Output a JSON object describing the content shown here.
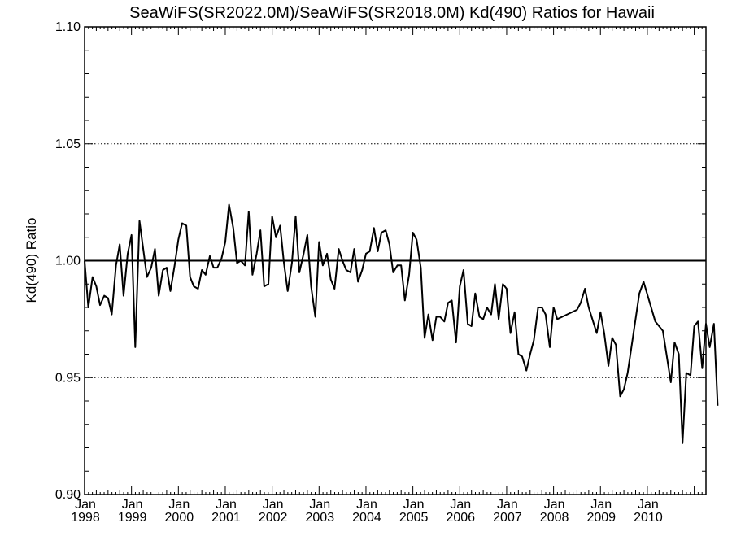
{
  "chart_data": {
    "type": "line",
    "title": "SeaWiFS(SR2022.0M)/SeaWiFS(SR2018.0M)  Kd(490) Ratios for Hawaii",
    "xlabel": "",
    "ylabel": "Kd(490) Ratio",
    "xlim": [
      1998.0,
      2011.25
    ],
    "ylim": [
      0.9,
      1.1
    ],
    "y_ticks": [
      "0.90",
      "0.95",
      "1.00",
      "1.05",
      "1.10"
    ],
    "x_ticks": [
      {
        "month": "Jan",
        "year": "1998"
      },
      {
        "month": "Jan",
        "year": "1999"
      },
      {
        "month": "Jan",
        "year": "2000"
      },
      {
        "month": "Jan",
        "year": "2001"
      },
      {
        "month": "Jan",
        "year": "2002"
      },
      {
        "month": "Jan",
        "year": "2003"
      },
      {
        "month": "Jan",
        "year": "2004"
      },
      {
        "month": "Jan",
        "year": "2005"
      },
      {
        "month": "Jan",
        "year": "2006"
      },
      {
        "month": "Jan",
        "year": "2007"
      },
      {
        "month": "Jan",
        "year": "2008"
      },
      {
        "month": "Jan",
        "year": "2009"
      },
      {
        "month": "Jan",
        "year": "2010"
      }
    ],
    "reference_lines": [
      {
        "y": 1.0,
        "style": "solid"
      },
      {
        "y": 1.05,
        "style": "dotted"
      },
      {
        "y": 0.95,
        "style": "dotted"
      }
    ],
    "grid": false,
    "series": [
      {
        "color": "#000000",
        "points": [
          [
            1998.0,
            1.0
          ],
          [
            1998.08,
            0.98
          ],
          [
            1998.17,
            0.993
          ],
          [
            1998.25,
            0.989
          ],
          [
            1998.33,
            0.981
          ],
          [
            1998.42,
            0.985
          ],
          [
            1998.5,
            0.984
          ],
          [
            1998.58,
            0.977
          ],
          [
            1998.67,
            0.998
          ],
          [
            1998.75,
            1.007
          ],
          [
            1998.83,
            0.985
          ],
          [
            1998.92,
            1.003
          ],
          [
            1999.0,
            1.011
          ],
          [
            1999.08,
            0.963
          ],
          [
            1999.17,
            1.017
          ],
          [
            1999.25,
            1.005
          ],
          [
            1999.33,
            0.993
          ],
          [
            1999.42,
            0.997
          ],
          [
            1999.5,
            1.005
          ],
          [
            1999.58,
            0.985
          ],
          [
            1999.67,
            0.996
          ],
          [
            1999.75,
            0.997
          ],
          [
            1999.83,
            0.987
          ],
          [
            1999.92,
            0.998
          ],
          [
            2000.0,
            1.009
          ],
          [
            2000.08,
            1.016
          ],
          [
            2000.17,
            1.015
          ],
          [
            2000.25,
            0.993
          ],
          [
            2000.33,
            0.989
          ],
          [
            2000.42,
            0.988
          ],
          [
            2000.5,
            0.996
          ],
          [
            2000.58,
            0.994
          ],
          [
            2000.67,
            1.002
          ],
          [
            2000.75,
            0.997
          ],
          [
            2000.83,
            0.997
          ],
          [
            2000.92,
            1.001
          ],
          [
            2001.0,
            1.008
          ],
          [
            2001.08,
            1.024
          ],
          [
            2001.17,
            1.014
          ],
          [
            2001.25,
            0.999
          ],
          [
            2001.33,
            1.0
          ],
          [
            2001.42,
            0.998
          ],
          [
            2001.5,
            1.021
          ],
          [
            2001.58,
            0.994
          ],
          [
            2001.67,
            1.003
          ],
          [
            2001.75,
            1.013
          ],
          [
            2001.83,
            0.989
          ],
          [
            2001.92,
            0.99
          ],
          [
            2002.0,
            1.019
          ],
          [
            2002.08,
            1.01
          ],
          [
            2002.17,
            1.015
          ],
          [
            2002.25,
            0.999
          ],
          [
            2002.33,
            0.987
          ],
          [
            2002.42,
            0.999
          ],
          [
            2002.5,
            1.019
          ],
          [
            2002.58,
            0.995
          ],
          [
            2002.67,
            1.003
          ],
          [
            2002.75,
            1.011
          ],
          [
            2002.83,
            0.989
          ],
          [
            2002.92,
            0.976
          ],
          [
            2003.0,
            1.008
          ],
          [
            2003.08,
            0.998
          ],
          [
            2003.17,
            1.003
          ],
          [
            2003.25,
            0.992
          ],
          [
            2003.33,
            0.988
          ],
          [
            2003.42,
            1.005
          ],
          [
            2003.5,
            1.0
          ],
          [
            2003.58,
            0.996
          ],
          [
            2003.67,
            0.995
          ],
          [
            2003.75,
            1.005
          ],
          [
            2003.83,
            0.991
          ],
          [
            2003.92,
            0.996
          ],
          [
            2004.0,
            1.003
          ],
          [
            2004.08,
            1.004
          ],
          [
            2004.17,
            1.014
          ],
          [
            2004.25,
            1.004
          ],
          [
            2004.33,
            1.012
          ],
          [
            2004.42,
            1.013
          ],
          [
            2004.5,
            1.007
          ],
          [
            2004.58,
            0.995
          ],
          [
            2004.67,
            0.998
          ],
          [
            2004.75,
            0.998
          ],
          [
            2004.83,
            0.983
          ],
          [
            2004.92,
            0.994
          ],
          [
            2005.0,
            1.012
          ],
          [
            2005.08,
            1.009
          ],
          [
            2005.17,
            0.997
          ],
          [
            2005.25,
            0.967
          ],
          [
            2005.33,
            0.977
          ],
          [
            2005.42,
            0.966
          ],
          [
            2005.5,
            0.976
          ],
          [
            2005.58,
            0.976
          ],
          [
            2005.67,
            0.974
          ],
          [
            2005.75,
            0.982
          ],
          [
            2005.83,
            0.983
          ],
          [
            2005.92,
            0.965
          ],
          [
            2006.0,
            0.989
          ],
          [
            2006.08,
            0.996
          ],
          [
            2006.17,
            0.973
          ],
          [
            2006.25,
            0.972
          ],
          [
            2006.33,
            0.986
          ],
          [
            2006.42,
            0.976
          ],
          [
            2006.5,
            0.975
          ],
          [
            2006.58,
            0.98
          ],
          [
            2006.67,
            0.977
          ],
          [
            2006.75,
            0.99
          ],
          [
            2006.83,
            0.975
          ],
          [
            2006.92,
            0.99
          ],
          [
            2007.0,
            0.988
          ],
          [
            2007.08,
            0.969
          ],
          [
            2007.17,
            0.978
          ],
          [
            2007.25,
            0.96
          ],
          [
            2007.33,
            0.959
          ],
          [
            2007.42,
            0.953
          ],
          [
            2007.5,
            0.96
          ],
          [
            2007.58,
            0.966
          ],
          [
            2007.67,
            0.98
          ],
          [
            2007.75,
            0.98
          ],
          [
            2007.83,
            0.977
          ],
          [
            2007.92,
            0.963
          ],
          [
            2008.0,
            0.98
          ],
          [
            2008.08,
            0.975
          ],
          [
            2008.5,
            0.979
          ],
          [
            2008.58,
            0.982
          ],
          [
            2008.67,
            0.988
          ],
          [
            2008.75,
            0.98
          ],
          [
            2008.92,
            0.969
          ],
          [
            2009.0,
            0.978
          ],
          [
            2009.08,
            0.969
          ],
          [
            2009.17,
            0.955
          ],
          [
            2009.25,
            0.967
          ],
          [
            2009.33,
            0.964
          ],
          [
            2009.42,
            0.942
          ],
          [
            2009.5,
            0.945
          ],
          [
            2009.58,
            0.952
          ],
          [
            2009.83,
            0.986
          ],
          [
            2009.92,
            0.991
          ],
          [
            2010.17,
            0.974
          ],
          [
            2010.33,
            0.97
          ],
          [
            2010.5,
            0.948
          ],
          [
            2010.58,
            0.965
          ],
          [
            2010.67,
            0.96
          ],
          [
            2010.75,
            0.922
          ],
          [
            2010.83,
            0.952
          ],
          [
            2010.92,
            0.951
          ],
          [
            2011.0,
            0.972
          ],
          [
            2011.08,
            0.974
          ],
          [
            2011.17,
            0.954
          ],
          [
            2011.25,
            0.973
          ],
          [
            2011.33,
            0.963
          ],
          [
            2011.42,
            0.973
          ],
          [
            2011.5,
            0.938
          ]
        ]
      }
    ]
  }
}
